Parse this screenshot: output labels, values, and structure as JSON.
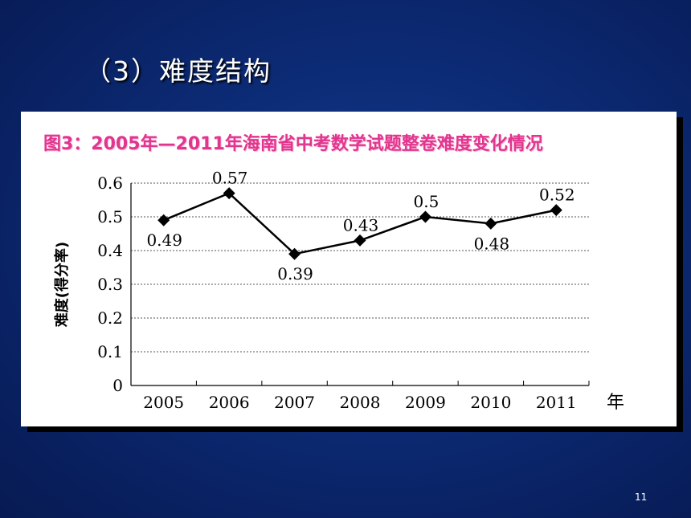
{
  "slide": {
    "title": "（3）难度结构",
    "page_number": "11"
  },
  "chart_data": {
    "type": "line",
    "title": "图3：2005年—2011年海南省中考数学试题整卷难度变化情况",
    "xlabel": "年",
    "ylabel": "难度(得分率)",
    "categories": [
      "2005",
      "2006",
      "2007",
      "2008",
      "2009",
      "2010",
      "2011"
    ],
    "series": [
      {
        "values": [
          0.49,
          0.57,
          0.39,
          0.43,
          0.5,
          0.48,
          0.52
        ],
        "labels": [
          "0.49",
          "0.57",
          "0.39",
          "0.43",
          "0.5",
          "0.48",
          "0.52"
        ]
      }
    ],
    "y_ticks": [
      "0",
      "0.1",
      "0.2",
      "0.3",
      "0.4",
      "0.5",
      "0.6"
    ],
    "ylim": [
      0,
      0.6
    ],
    "grid": "horizontal dotted",
    "marker": "diamond",
    "colors": {
      "line": "#000000",
      "title": "#e0368f"
    }
  }
}
